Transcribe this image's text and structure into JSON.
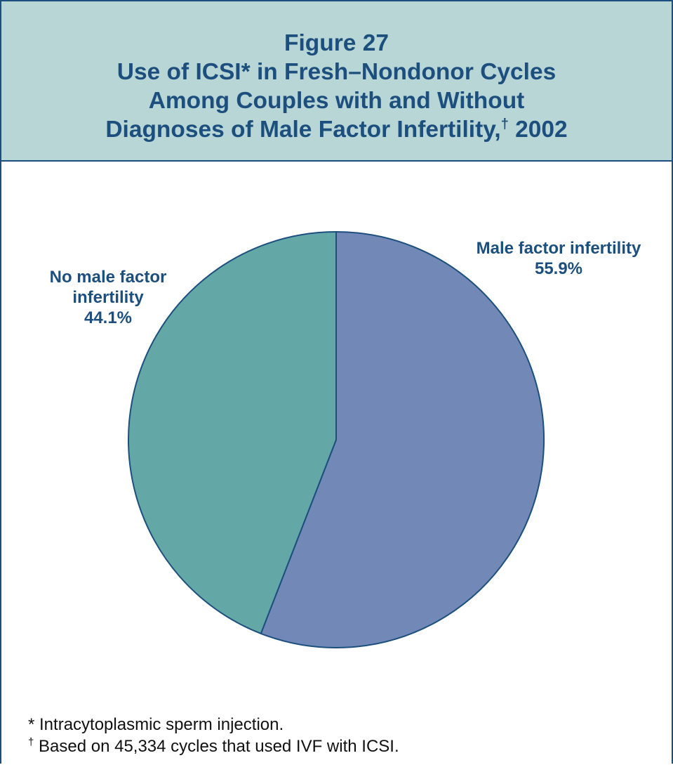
{
  "header": {
    "figure_number": "Figure 27",
    "title_line_1": "Use of ICSI* in Fresh–Nondonor Cycles",
    "title_line_2": "Among Couples with and Without",
    "title_line_3_main": "Diagnoses of Male Factor Infertility,",
    "title_line_3_mark": "†",
    "title_line_3_year": " 2002"
  },
  "chart_data": {
    "type": "pie",
    "unit": "%",
    "slices": [
      {
        "name": "Male factor infertility",
        "label_lines": [
          "Male factor infertility"
        ],
        "value": 55.9,
        "value_label": "55.9%",
        "color": "#7289b7"
      },
      {
        "name": "No male factor infertility",
        "label_lines": [
          "No male factor",
          "infertility"
        ],
        "value": 44.1,
        "value_label": "44.1%",
        "color": "#63a8a6"
      }
    ],
    "start": "12 o'clock",
    "direction": "clockwise",
    "outline_color": "#1c4f7e"
  },
  "footnotes": [
    {
      "mark": "*",
      "text": " Intracytoplasmic sperm injection."
    },
    {
      "mark": "†",
      "text": " Based on 45,334 cycles that used IVF with ICSI."
    }
  ],
  "colors": {
    "header_background": "#b9d6d6",
    "title_text": "#1c4f7e",
    "frame_border": "#1c4f7e"
  }
}
